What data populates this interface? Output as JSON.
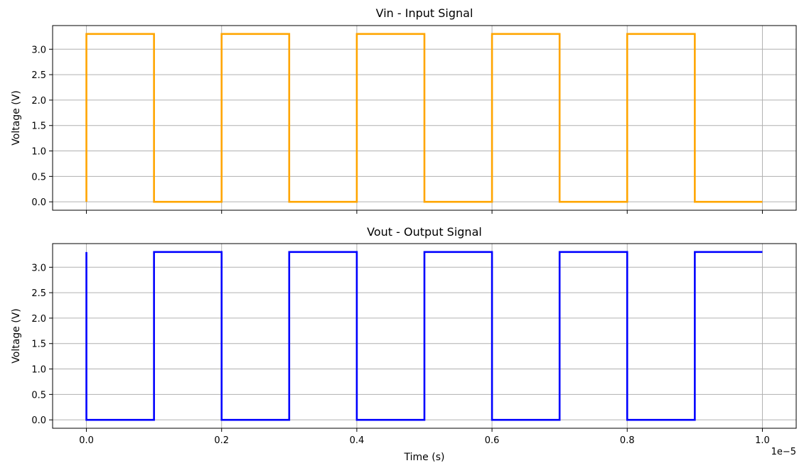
{
  "chart_data": [
    {
      "type": "line",
      "title": "Vin - Input Signal",
      "xlabel": "",
      "ylabel": "Voltage (V)",
      "xlim": [
        -0.05,
        1.05
      ],
      "ylim": [
        -0.165,
        3.465
      ],
      "x_ticks": [
        0.0,
        0.2,
        0.4,
        0.6,
        0.8,
        1.0
      ],
      "x_tick_labels_visible": false,
      "y_ticks": [
        "0.0",
        "0.5",
        "1.0",
        "1.5",
        "2.0",
        "2.5",
        "3.0"
      ],
      "grid": true,
      "color": "#ffa500",
      "series": [
        {
          "x": [
            0.0,
            0.0,
            0.1,
            0.1,
            0.2,
            0.2,
            0.3,
            0.3,
            0.4,
            0.4,
            0.5,
            0.5,
            0.6,
            0.6,
            0.7,
            0.7,
            0.8,
            0.8,
            0.9,
            0.9,
            1.0
          ],
          "y": [
            0.0,
            3.3,
            3.3,
            0.0,
            0.0,
            3.3,
            3.3,
            0.0,
            0.0,
            3.3,
            3.3,
            0.0,
            0.0,
            3.3,
            3.3,
            0.0,
            0.0,
            3.3,
            3.3,
            0.0,
            0.0
          ]
        }
      ]
    },
    {
      "type": "line",
      "title": "Vout - Output Signal",
      "xlabel": "Time (s)",
      "ylabel": "Voltage (V)",
      "xlim": [
        -0.05,
        1.05
      ],
      "ylim": [
        -0.165,
        3.465
      ],
      "x_ticks": [
        "0.0",
        "0.2",
        "0.4",
        "0.6",
        "0.8",
        "1.0"
      ],
      "x_scale_label": "1e−5",
      "y_ticks": [
        "0.0",
        "0.5",
        "1.0",
        "1.5",
        "2.0",
        "2.5",
        "3.0"
      ],
      "grid": true,
      "color": "#0000ff",
      "series": [
        {
          "x": [
            0.0,
            0.0,
            0.1,
            0.1,
            0.2,
            0.2,
            0.3,
            0.3,
            0.4,
            0.4,
            0.5,
            0.5,
            0.6,
            0.6,
            0.7,
            0.7,
            0.8,
            0.8,
            0.9,
            0.9,
            1.0
          ],
          "y": [
            3.3,
            0.0,
            0.0,
            3.3,
            3.3,
            0.0,
            0.0,
            3.3,
            3.3,
            0.0,
            0.0,
            3.3,
            3.3,
            0.0,
            0.0,
            3.3,
            3.3,
            0.0,
            0.0,
            3.3,
            3.3
          ]
        }
      ]
    }
  ]
}
